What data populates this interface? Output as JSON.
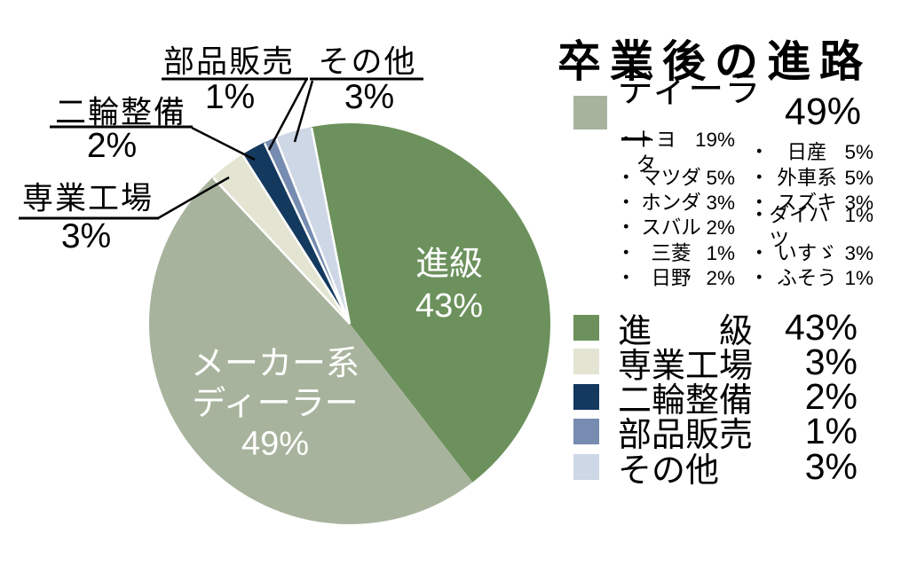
{
  "title": "卒業後の進路",
  "chart_data": {
    "type": "pie",
    "title": "卒業後の進路",
    "start_angle_deg": -11,
    "direction": "clockwise",
    "separator_color": "#ffffff",
    "background": "#ffffff",
    "slices": [
      {
        "label": "進級",
        "value": 43,
        "pct": "43%",
        "color": "#6C915C"
      },
      {
        "label": "メーカー系ディーラー",
        "value": 49,
        "pct": "49%",
        "color": "#A8B39D",
        "pie_label_line1": "メーカー系",
        "pie_label_line2": "ディーラー"
      },
      {
        "label": "専業工場",
        "value": 3,
        "pct": "3%",
        "color": "#E3E4D2"
      },
      {
        "label": "二輪整備",
        "value": 2,
        "pct": "2%",
        "color": "#14395F"
      },
      {
        "label": "部品販売",
        "value": 1,
        "pct": "1%",
        "color": "#768CB0"
      },
      {
        "label": "その他",
        "value": 3,
        "pct": "3%",
        "color": "#CDD7E6"
      }
    ]
  },
  "legend": {
    "bullet": "・",
    "dealer": {
      "label": "ディーラー",
      "pct": "49%",
      "color": "#A8B39D",
      "breakdown_col1": [
        {
          "name": "トヨタ",
          "pct": "19%"
        },
        {
          "name": "マツダ",
          "pct": "5%"
        },
        {
          "name": "ホンダ",
          "pct": "3%"
        },
        {
          "name": "スバル",
          "pct": "2%"
        },
        {
          "name": "三菱",
          "pct": "1%"
        },
        {
          "name": "日野",
          "pct": "2%"
        }
      ],
      "breakdown_col2": [
        {
          "name": "日産",
          "pct": "5%"
        },
        {
          "name": "外車系",
          "pct": "5%"
        },
        {
          "name": "スズキ",
          "pct": "3%"
        },
        {
          "name": "ダイハツ",
          "pct": "1%"
        },
        {
          "name": "いすゞ",
          "pct": "3%"
        },
        {
          "name": "ふそう",
          "pct": "1%"
        }
      ]
    },
    "rows": [
      {
        "label": "進　　級",
        "pct": "43%",
        "color": "#6C915C"
      },
      {
        "label": "専業工場",
        "pct": "3%",
        "color": "#E3E4D2"
      },
      {
        "label": "二輪整備",
        "pct": "2%",
        "color": "#14395F"
      },
      {
        "label": "部品販売",
        "pct": "1%",
        "color": "#768CB0"
      },
      {
        "label": "その他",
        "pct": "3%",
        "color": "#CDD7E6"
      }
    ]
  }
}
